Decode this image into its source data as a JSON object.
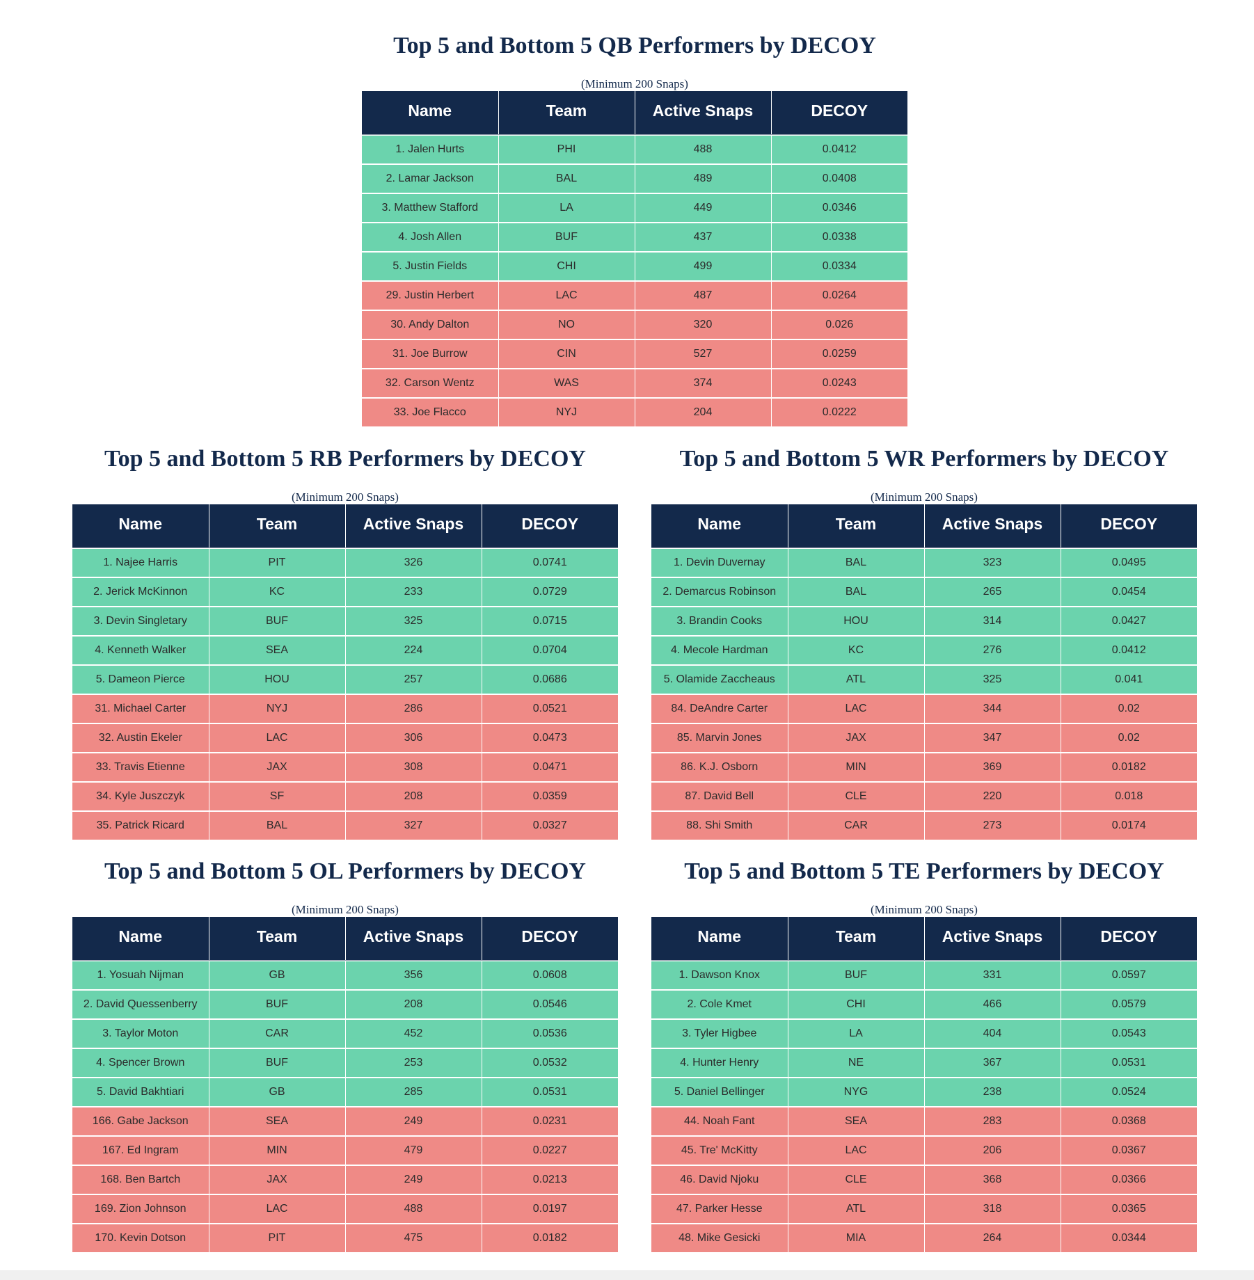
{
  "subtitle": "(Minimum 200 Snaps)",
  "columns": [
    "Name",
    "Team",
    "Active Snaps",
    "DECOY"
  ],
  "colors": {
    "header": "#13294b",
    "top_row": "#6bd3ad",
    "bottom_row": "#ef8a86",
    "title": "#13294b"
  },
  "tables": {
    "qb": {
      "title": "Top 5 and Bottom 5 QB Performers by DECOY",
      "rows": [
        {
          "name": "1. Jalen Hurts",
          "team": "PHI",
          "snaps": "488",
          "decoy": "0.0412",
          "group": "top"
        },
        {
          "name": "2. Lamar Jackson",
          "team": "BAL",
          "snaps": "489",
          "decoy": "0.0408",
          "group": "top"
        },
        {
          "name": "3. Matthew Stafford",
          "team": "LA",
          "snaps": "449",
          "decoy": "0.0346",
          "group": "top"
        },
        {
          "name": "4. Josh Allen",
          "team": "BUF",
          "snaps": "437",
          "decoy": "0.0338",
          "group": "top"
        },
        {
          "name": "5. Justin Fields",
          "team": "CHI",
          "snaps": "499",
          "decoy": "0.0334",
          "group": "top"
        },
        {
          "name": "29. Justin Herbert",
          "team": "LAC",
          "snaps": "487",
          "decoy": "0.0264",
          "group": "bottom"
        },
        {
          "name": "30. Andy Dalton",
          "team": "NO",
          "snaps": "320",
          "decoy": "0.026",
          "group": "bottom"
        },
        {
          "name": "31. Joe Burrow",
          "team": "CIN",
          "snaps": "527",
          "decoy": "0.0259",
          "group": "bottom"
        },
        {
          "name": "32. Carson Wentz",
          "team": "WAS",
          "snaps": "374",
          "decoy": "0.0243",
          "group": "bottom"
        },
        {
          "name": "33. Joe Flacco",
          "team": "NYJ",
          "snaps": "204",
          "decoy": "0.0222",
          "group": "bottom"
        }
      ]
    },
    "rb": {
      "title": "Top 5 and Bottom 5 RB Performers by DECOY",
      "rows": [
        {
          "name": "1. Najee Harris",
          "team": "PIT",
          "snaps": "326",
          "decoy": "0.0741",
          "group": "top"
        },
        {
          "name": "2. Jerick McKinnon",
          "team": "KC",
          "snaps": "233",
          "decoy": "0.0729",
          "group": "top"
        },
        {
          "name": "3. Devin Singletary",
          "team": "BUF",
          "snaps": "325",
          "decoy": "0.0715",
          "group": "top"
        },
        {
          "name": "4. Kenneth Walker",
          "team": "SEA",
          "snaps": "224",
          "decoy": "0.0704",
          "group": "top"
        },
        {
          "name": "5. Dameon Pierce",
          "team": "HOU",
          "snaps": "257",
          "decoy": "0.0686",
          "group": "top"
        },
        {
          "name": "31. Michael Carter",
          "team": "NYJ",
          "snaps": "286",
          "decoy": "0.0521",
          "group": "bottom"
        },
        {
          "name": "32. Austin Ekeler",
          "team": "LAC",
          "snaps": "306",
          "decoy": "0.0473",
          "group": "bottom"
        },
        {
          "name": "33. Travis Etienne",
          "team": "JAX",
          "snaps": "308",
          "decoy": "0.0471",
          "group": "bottom"
        },
        {
          "name": "34. Kyle Juszczyk",
          "team": "SF",
          "snaps": "208",
          "decoy": "0.0359",
          "group": "bottom"
        },
        {
          "name": "35. Patrick Ricard",
          "team": "BAL",
          "snaps": "327",
          "decoy": "0.0327",
          "group": "bottom"
        }
      ]
    },
    "wr": {
      "title": "Top 5 and Bottom 5 WR Performers by DECOY",
      "rows": [
        {
          "name": "1. Devin Duvernay",
          "team": "BAL",
          "snaps": "323",
          "decoy": "0.0495",
          "group": "top"
        },
        {
          "name": "2. Demarcus Robinson",
          "team": "BAL",
          "snaps": "265",
          "decoy": "0.0454",
          "group": "top"
        },
        {
          "name": "3. Brandin Cooks",
          "team": "HOU",
          "snaps": "314",
          "decoy": "0.0427",
          "group": "top"
        },
        {
          "name": "4. Mecole Hardman",
          "team": "KC",
          "snaps": "276",
          "decoy": "0.0412",
          "group": "top"
        },
        {
          "name": "5. Olamide Zaccheaus",
          "team": "ATL",
          "snaps": "325",
          "decoy": "0.041",
          "group": "top"
        },
        {
          "name": "84. DeAndre Carter",
          "team": "LAC",
          "snaps": "344",
          "decoy": "0.02",
          "group": "bottom"
        },
        {
          "name": "85. Marvin Jones",
          "team": "JAX",
          "snaps": "347",
          "decoy": "0.02",
          "group": "bottom"
        },
        {
          "name": "86. K.J. Osborn",
          "team": "MIN",
          "snaps": "369",
          "decoy": "0.0182",
          "group": "bottom"
        },
        {
          "name": "87. David Bell",
          "team": "CLE",
          "snaps": "220",
          "decoy": "0.018",
          "group": "bottom"
        },
        {
          "name": "88. Shi Smith",
          "team": "CAR",
          "snaps": "273",
          "decoy": "0.0174",
          "group": "bottom"
        }
      ]
    },
    "ol": {
      "title": "Top 5 and Bottom 5 OL Performers by DECOY",
      "rows": [
        {
          "name": "1. Yosuah Nijman",
          "team": "GB",
          "snaps": "356",
          "decoy": "0.0608",
          "group": "top"
        },
        {
          "name": "2. David Quessenberry",
          "team": "BUF",
          "snaps": "208",
          "decoy": "0.0546",
          "group": "top"
        },
        {
          "name": "3. Taylor Moton",
          "team": "CAR",
          "snaps": "452",
          "decoy": "0.0536",
          "group": "top"
        },
        {
          "name": "4. Spencer Brown",
          "team": "BUF",
          "snaps": "253",
          "decoy": "0.0532",
          "group": "top"
        },
        {
          "name": "5. David Bakhtiari",
          "team": "GB",
          "snaps": "285",
          "decoy": "0.0531",
          "group": "top"
        },
        {
          "name": "166. Gabe Jackson",
          "team": "SEA",
          "snaps": "249",
          "decoy": "0.0231",
          "group": "bottom"
        },
        {
          "name": "167. Ed Ingram",
          "team": "MIN",
          "snaps": "479",
          "decoy": "0.0227",
          "group": "bottom"
        },
        {
          "name": "168. Ben Bartch",
          "team": "JAX",
          "snaps": "249",
          "decoy": "0.0213",
          "group": "bottom"
        },
        {
          "name": "169. Zion Johnson",
          "team": "LAC",
          "snaps": "488",
          "decoy": "0.0197",
          "group": "bottom"
        },
        {
          "name": "170. Kevin Dotson",
          "team": "PIT",
          "snaps": "475",
          "decoy": "0.0182",
          "group": "bottom"
        }
      ]
    },
    "te": {
      "title": "Top 5 and Bottom 5 TE Performers by DECOY",
      "rows": [
        {
          "name": "1. Dawson Knox",
          "team": "BUF",
          "snaps": "331",
          "decoy": "0.0597",
          "group": "top"
        },
        {
          "name": "2. Cole Kmet",
          "team": "CHI",
          "snaps": "466",
          "decoy": "0.0579",
          "group": "top"
        },
        {
          "name": "3. Tyler Higbee",
          "team": "LA",
          "snaps": "404",
          "decoy": "0.0543",
          "group": "top"
        },
        {
          "name": "4. Hunter Henry",
          "team": "NE",
          "snaps": "367",
          "decoy": "0.0531",
          "group": "top"
        },
        {
          "name": "5. Daniel Bellinger",
          "team": "NYG",
          "snaps": "238",
          "decoy": "0.0524",
          "group": "top"
        },
        {
          "name": "44. Noah Fant",
          "team": "SEA",
          "snaps": "283",
          "decoy": "0.0368",
          "group": "bottom"
        },
        {
          "name": "45. Tre' McKitty",
          "team": "LAC",
          "snaps": "206",
          "decoy": "0.0367",
          "group": "bottom"
        },
        {
          "name": "46. David Njoku",
          "team": "CLE",
          "snaps": "368",
          "decoy": "0.0366",
          "group": "bottom"
        },
        {
          "name": "47. Parker Hesse",
          "team": "ATL",
          "snaps": "318",
          "decoy": "0.0365",
          "group": "bottom"
        },
        {
          "name": "48. Mike Gesicki",
          "team": "MIA",
          "snaps": "264",
          "decoy": "0.0344",
          "group": "bottom"
        }
      ]
    }
  }
}
